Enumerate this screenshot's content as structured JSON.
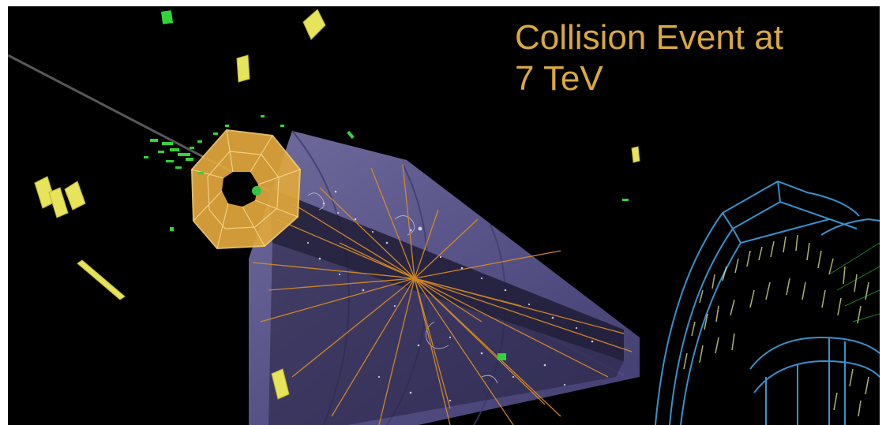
{
  "caption": {
    "line1": "Collision Event at",
    "line2": "7 TeV"
  },
  "colors": {
    "background": "#000000",
    "caption": "#d9a93e",
    "endcap_wheel": "#e1a83c",
    "barrel_detector": "#6a6496",
    "particle_tracks": "#d88a25",
    "calorimeter_hits": "#e7e35a",
    "muon_hits": "#33d43a",
    "outer_detector": "#3a9ad9"
  }
}
